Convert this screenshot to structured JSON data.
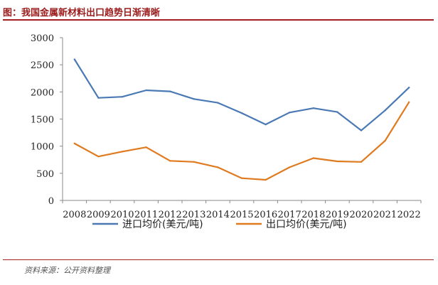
{
  "header": {
    "title": "图：我国金属新材料出口趋势日渐清晰"
  },
  "footer": {
    "source": "资料来源：公开资料整理"
  },
  "chart_data": {
    "type": "line",
    "x": [
      "2008",
      "2009",
      "2010",
      "2011",
      "2012",
      "2013",
      "2014",
      "2015",
      "2016",
      "2017",
      "2018",
      "2019",
      "2020",
      "2021",
      "2022"
    ],
    "ylim": [
      0,
      3000
    ],
    "yticks": [
      0,
      500,
      1000,
      1500,
      2000,
      2500,
      3000
    ],
    "grid": false,
    "legend_position": "bottom",
    "series": [
      {
        "name": "进口均价(美元/吨)",
        "color": "#4a79b4",
        "values": [
          2600,
          1890,
          1910,
          2030,
          2010,
          1870,
          1800,
          1610,
          1400,
          1620,
          1700,
          1630,
          1290,
          1660,
          2080
        ]
      },
      {
        "name": "出口均价(美元/吨)",
        "color": "#e07a1f",
        "values": [
          1050,
          810,
          900,
          980,
          730,
          710,
          610,
          410,
          380,
          610,
          780,
          720,
          710,
          1100,
          1810
        ]
      }
    ]
  }
}
